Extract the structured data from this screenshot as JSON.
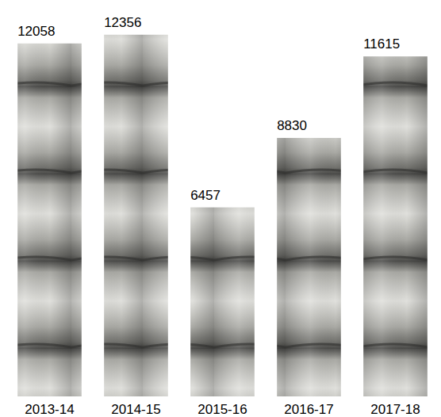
{
  "chart_data": {
    "type": "bar",
    "categories": [
      "2013-14",
      "2014-15",
      "2015-16",
      "2016-17",
      "2017-18"
    ],
    "values": [
      12058,
      12356,
      6457,
      8830,
      11615
    ],
    "color": "#a9a9a4",
    "ylim": [
      0,
      13000
    ],
    "data_labels": true,
    "tick_labels": "x",
    "grid": false
  }
}
